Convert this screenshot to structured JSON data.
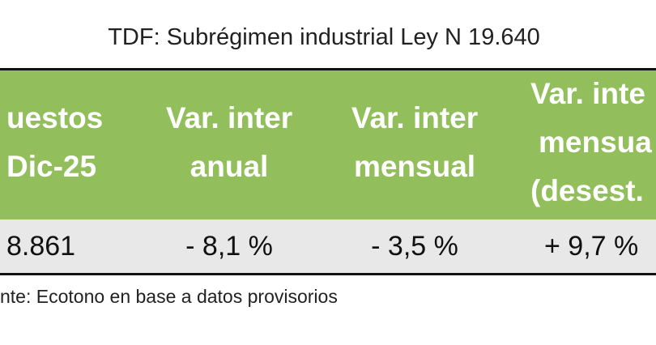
{
  "title": "TDF: Subrégimen industrial Ley N 19.640",
  "table": {
    "header": [
      [
        "uestos",
        "Dic-25"
      ],
      [
        "Var. inter",
        "anual"
      ],
      [
        "Var. inter",
        "mensual"
      ],
      [
        "Var. inte",
        "mensua",
        "(desest."
      ]
    ],
    "rows": [
      [
        "8.861",
        "- 8,1 %",
        "- 3,5 %",
        "+ 9,7 %"
      ]
    ]
  },
  "source": "nte: Ecotono en base a datos provisorios"
}
